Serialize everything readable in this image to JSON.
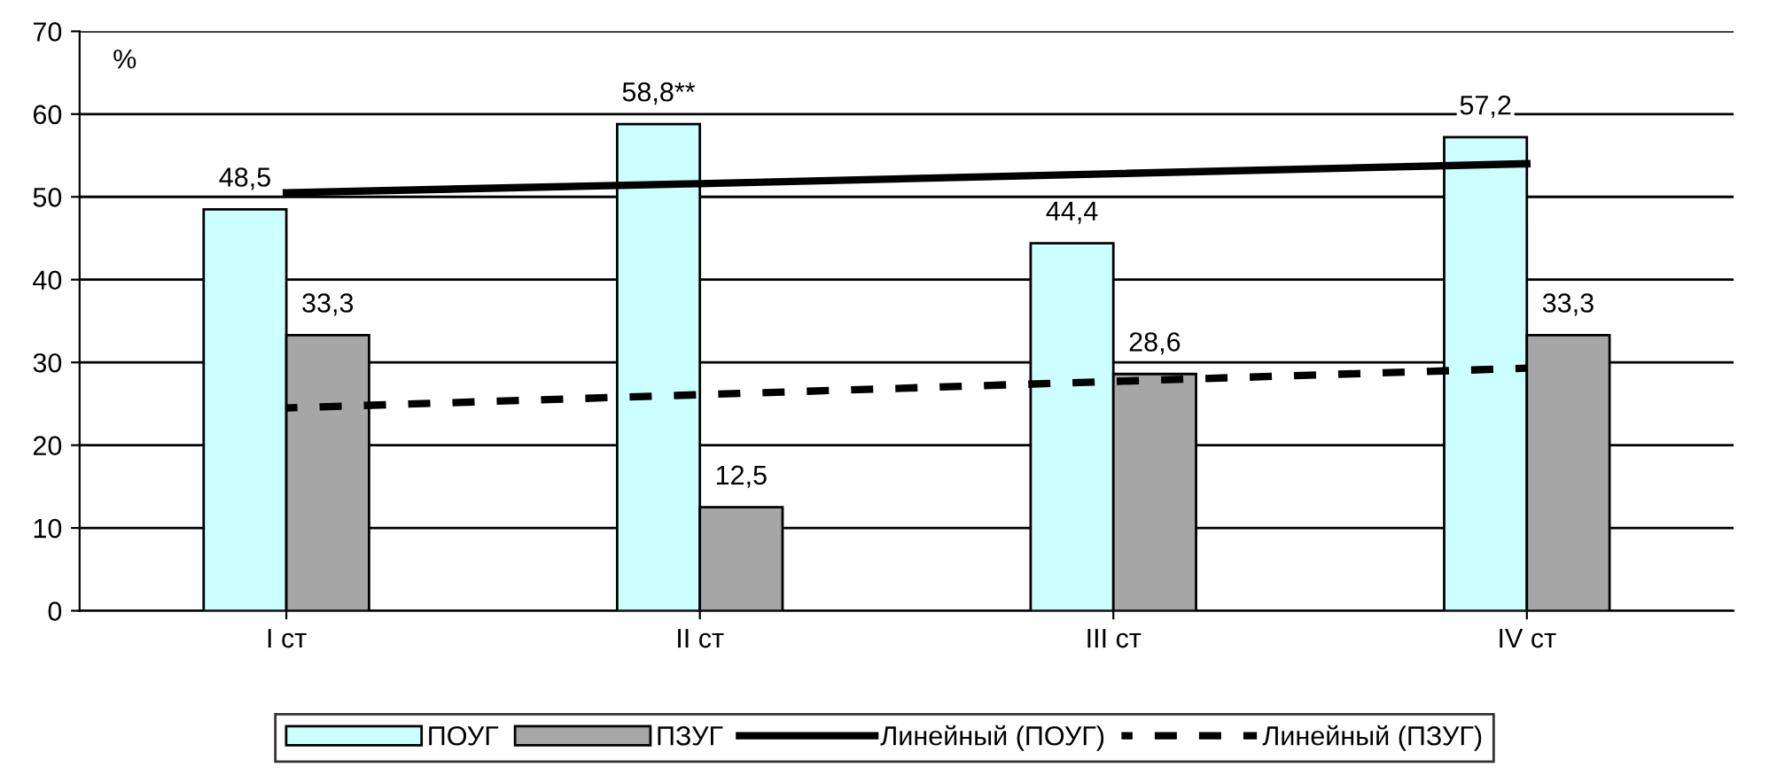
{
  "chart_data": {
    "type": "bar",
    "ylabel": "%",
    "categories": [
      "I ст",
      "II ст",
      "III ст",
      "IV ст"
    ],
    "series": [
      {
        "name": "ПОУГ",
        "color": "#ccffff",
        "values": [
          48.5,
          58.8,
          44.4,
          57.2
        ],
        "value_labels": [
          "48,5",
          "58,8**",
          "44,4",
          "57,2"
        ]
      },
      {
        "name": "ПЗУГ",
        "color": "#a6a6a6",
        "values": [
          33.3,
          12.5,
          28.6,
          33.3
        ],
        "value_labels": [
          "33,3",
          "12,5",
          "28,6",
          "33,3"
        ]
      },
      {
        "name": "Линейный (ПОУГ)",
        "type": "line",
        "color": "#000000",
        "line_style": "solid",
        "values": [
          50.5,
          51.6,
          52.8,
          54.0
        ]
      },
      {
        "name": "Линейный (ПЗУГ)",
        "type": "line",
        "color": "#000000",
        "line_style": "dashed",
        "values": [
          24.5,
          26.1,
          27.7,
          29.3
        ]
      }
    ],
    "ylim": [
      0,
      70
    ],
    "yticks": [
      0,
      10,
      20,
      30,
      40,
      50,
      60,
      70
    ],
    "grid": "y",
    "legend": "bottom",
    "marker": "none"
  }
}
